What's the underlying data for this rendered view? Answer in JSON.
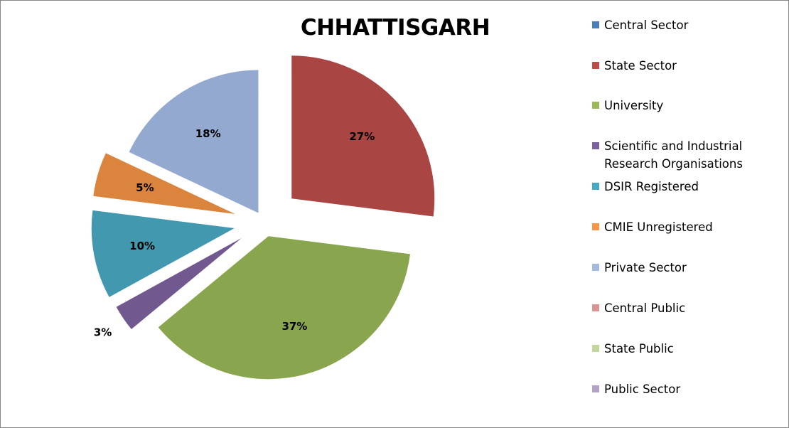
{
  "chart_data": {
    "type": "pie",
    "title": "CHHATTISGARH",
    "legend_position": "right",
    "legend": [
      {
        "name": "Central Sector",
        "color": "#4a7ebb"
      },
      {
        "name": "State Sector",
        "color": "#be4b48"
      },
      {
        "name": "University",
        "color": "#98b954"
      },
      {
        "name": "Scientific and Industrial Research Organisations",
        "color": "#7d60a0"
      },
      {
        "name": "DSIR Registered",
        "color": "#46aac5"
      },
      {
        "name": "CMIE Unregistered",
        "color": "#f79646"
      },
      {
        "name": "Private Sector",
        "color": "#a5b9de"
      },
      {
        "name": "Central Public",
        "color": "#d99694"
      },
      {
        "name": "State Public",
        "color": "#c3d69b"
      },
      {
        "name": "Public Sector",
        "color": "#b3a2c7"
      }
    ],
    "slices": [
      {
        "category": "State Sector",
        "value": 27,
        "label": "27%",
        "color": "#a94543"
      },
      {
        "category": "University",
        "value": 37,
        "label": "37%",
        "color": "#89a54e"
      },
      {
        "category": "Scientific and Industrial Research Organisations",
        "value": 3,
        "label": "3%",
        "color": "#71588f"
      },
      {
        "category": "DSIR Registered",
        "value": 10,
        "label": "10%",
        "color": "#4198af"
      },
      {
        "category": "CMIE Unregistered",
        "value": 5,
        "label": "5%",
        "color": "#db843d"
      },
      {
        "category": "Private Sector",
        "value": 18,
        "label": "18%",
        "color": "#93a9cf"
      }
    ]
  }
}
